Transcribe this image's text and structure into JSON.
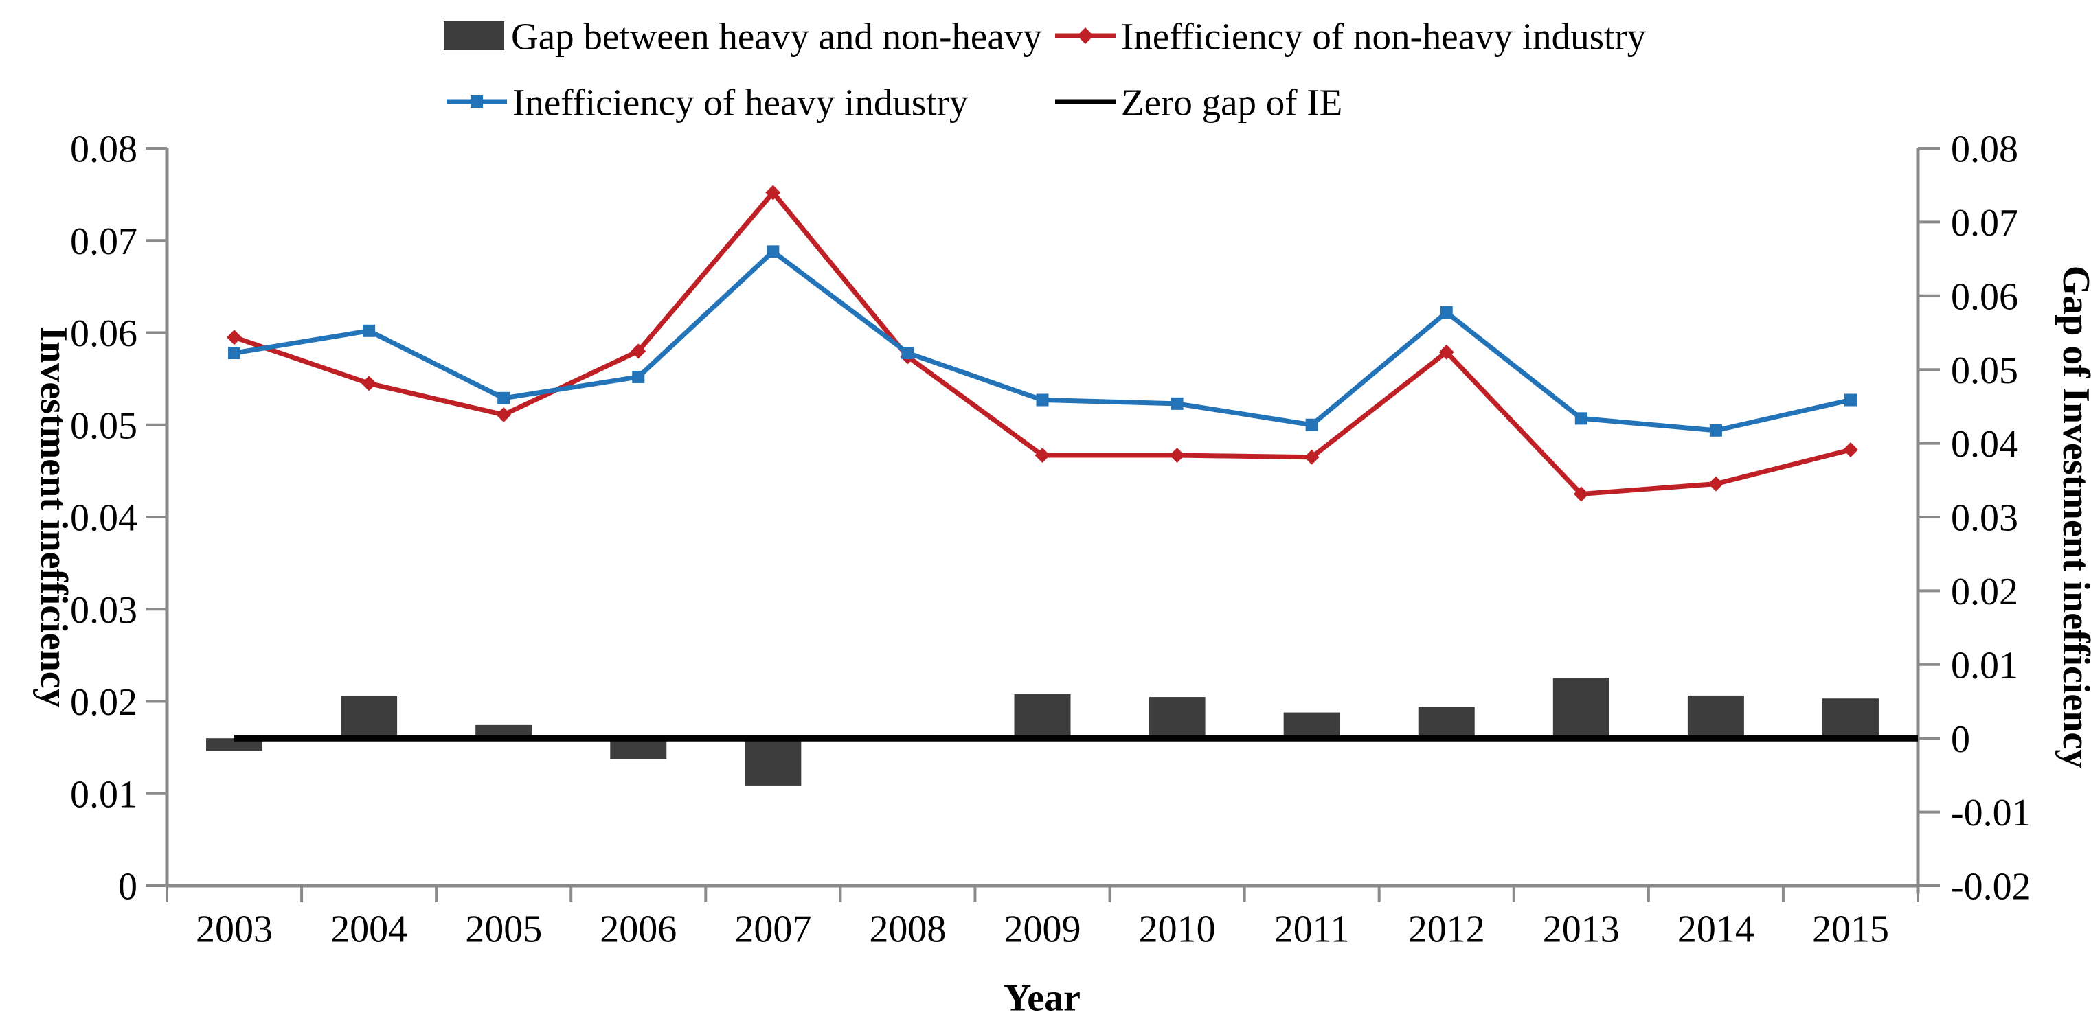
{
  "chart_data": {
    "type": "combo_bar_line",
    "title": "",
    "categories": [
      "2003",
      "2004",
      "2005",
      "2006",
      "2007",
      "2008",
      "2009",
      "2010",
      "2011",
      "2012",
      "2013",
      "2014",
      "2015"
    ],
    "x_axis": {
      "title": "Year"
    },
    "left_axis": {
      "title": "Investment inefficiency",
      "min": 0,
      "max": 0.08,
      "step": 0.01,
      "ticks": [
        "0.08",
        "0.07",
        "0.06",
        "0.05",
        "0.04",
        "0.03",
        "0.02",
        "0.01",
        "0"
      ]
    },
    "right_axis": {
      "title": "Gap of Investment inefficiency",
      "min": -0.02,
      "max": 0.08,
      "step": 0.01,
      "ticks": [
        "0.08",
        "0.07",
        "0.06",
        "0.05",
        "0.04",
        "0.03",
        "0.02",
        "0.01",
        "0",
        "-0.01",
        "-0.02"
      ]
    },
    "legend_position": "top",
    "grid": false,
    "series": [
      {
        "name": "Gap between heavy and non-heavy",
        "type": "bar",
        "axis": "right",
        "color": "#3d3d3d",
        "values": [
          -0.0017,
          0.0057,
          0.0018,
          -0.0028,
          -0.0064,
          0.0004,
          0.006,
          0.0056,
          0.0035,
          0.0043,
          0.0082,
          0.0058,
          0.0054
        ]
      },
      {
        "name": "Inefficiency of non-heavy industry",
        "type": "line",
        "marker": "diamond",
        "axis": "left",
        "color": "#bf2026",
        "values": [
          0.0595,
          0.0545,
          0.0511,
          0.058,
          0.0752,
          0.0574,
          0.0467,
          0.0467,
          0.0465,
          0.0579,
          0.0425,
          0.0436,
          0.0473
        ]
      },
      {
        "name": "Inefficiency of heavy industry",
        "type": "line",
        "marker": "square",
        "axis": "left",
        "color": "#2273b8",
        "values": [
          0.0578,
          0.0602,
          0.0529,
          0.0552,
          0.0688,
          0.0578,
          0.0527,
          0.0523,
          0.05,
          0.0622,
          0.0507,
          0.0494,
          0.0527
        ]
      },
      {
        "name": "Zero gap of IE",
        "type": "line",
        "marker": "none",
        "axis": "right",
        "color": "#000000",
        "values": [
          0,
          0,
          0,
          0,
          0,
          0,
          0,
          0,
          0,
          0,
          0,
          0,
          0
        ]
      }
    ]
  }
}
